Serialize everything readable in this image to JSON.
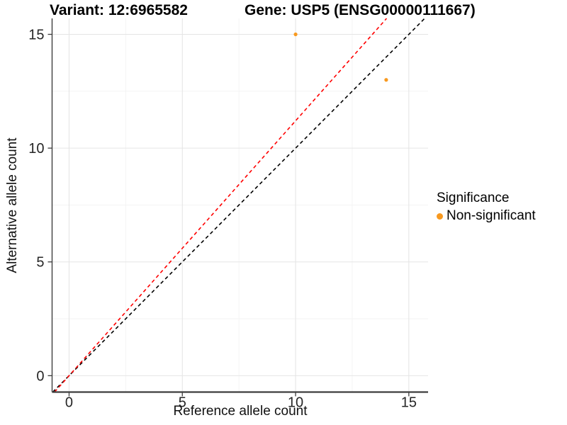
{
  "title": {
    "variant": "Variant: 12:6965582",
    "gene": "Gene: USP5 (ENSG00000111667)"
  },
  "axes": {
    "x_label": "Reference allele count",
    "y_label": "Alternative allele count"
  },
  "legend": {
    "title": "Significance",
    "items": [
      {
        "label": "Non-significant",
        "color": "#F8991F"
      }
    ],
    "position": "right"
  },
  "colors": {
    "point_orange": "#F8991F",
    "identity_line": "#000000",
    "fit_line": "#FF0000",
    "grid_major": "#E5E5E5",
    "grid_minor": "#F2F2F2",
    "axis_line": "#3E3E3E",
    "tick_text": "#262626"
  },
  "chart_data": {
    "type": "scatter",
    "title": "Variant: 12:6965582   Gene: USP5 (ENSG00000111667)",
    "xlabel": "Reference allele count",
    "ylabel": "Alternative allele count",
    "xlim": [
      -0.75,
      15.85
    ],
    "ylim": [
      -0.72,
      15.7
    ],
    "x_ticks": [
      0,
      5,
      10,
      15
    ],
    "y_ticks": [
      0,
      5,
      10,
      15
    ],
    "x_minor_ticks": [
      2.5,
      7.5,
      12.5
    ],
    "y_minor_ticks": [
      2.5,
      7.5,
      12.5
    ],
    "grid": true,
    "legend_position": "right",
    "series": [
      {
        "name": "Non-significant",
        "color": "#F8991F",
        "marker_radius": 2.6,
        "points": [
          {
            "x": 10,
            "y": 15
          },
          {
            "x": 14,
            "y": 13
          }
        ]
      }
    ],
    "ablines": [
      {
        "name": "identity-line",
        "slope": 1.0,
        "intercept": 0,
        "color": "#000000",
        "style": "dashed"
      },
      {
        "name": "fit-ratio-line",
        "slope": 1.12,
        "intercept": 0,
        "color": "#FF0000",
        "style": "dashed"
      }
    ]
  }
}
